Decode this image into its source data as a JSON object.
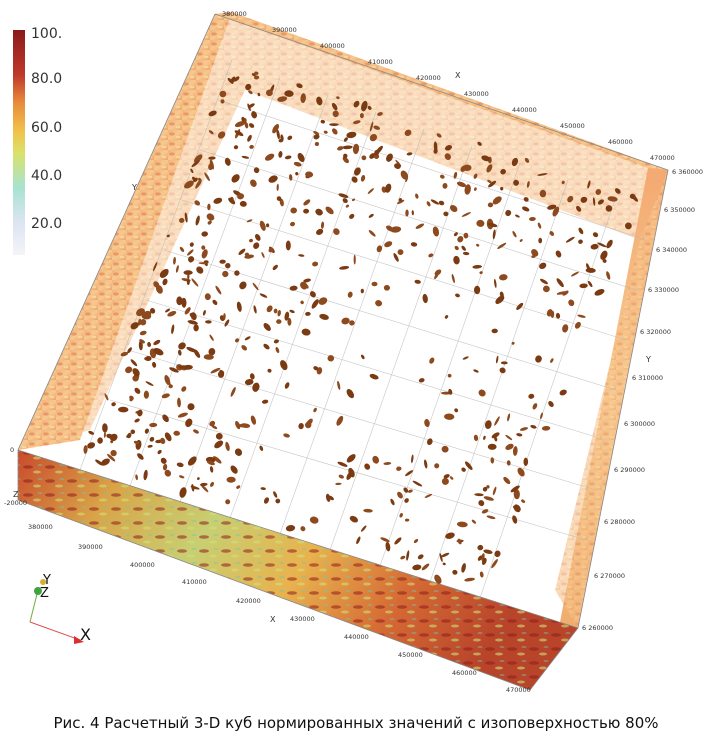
{
  "caption": "Рис. 4 Расчетный 3-D куб нормированных значений с изоповерхностью 80%",
  "colorbar": {
    "labels": [
      "100.",
      "80.0",
      "60.0",
      "40.0",
      "20.0"
    ],
    "stops": [
      "#8b1a1a",
      "#c0392b",
      "#e8893a",
      "#f1c24a",
      "#d9e26a",
      "#a6e3d0",
      "#dbe4f2",
      "#f4f4f8"
    ]
  },
  "axes": {
    "x_name": "X",
    "y_name": "Y",
    "z_name": "Z",
    "x_top_ticks": [
      "380000",
      "390000",
      "400000",
      "410000",
      "420000",
      "430000",
      "440000",
      "450000",
      "460000",
      "470000"
    ],
    "x_bottom_ticks": [
      "380000",
      "390000",
      "400000",
      "410000",
      "420000",
      "430000",
      "440000",
      "450000",
      "460000",
      "470000"
    ],
    "y_right_ticks": [
      "6 360000",
      "6 350000",
      "6 340000",
      "6 330000",
      "6 320000",
      "6 310000",
      "6 300000",
      "6 290000",
      "6 280000",
      "6 270000",
      "6 260000"
    ],
    "z_ticks": [
      "0",
      "-20000"
    ]
  },
  "orientation_widget": {
    "x": "X",
    "y": "Y",
    "z": "Z"
  },
  "isosurface_color": "#7a3a12",
  "wall_color": "#f0b87a"
}
